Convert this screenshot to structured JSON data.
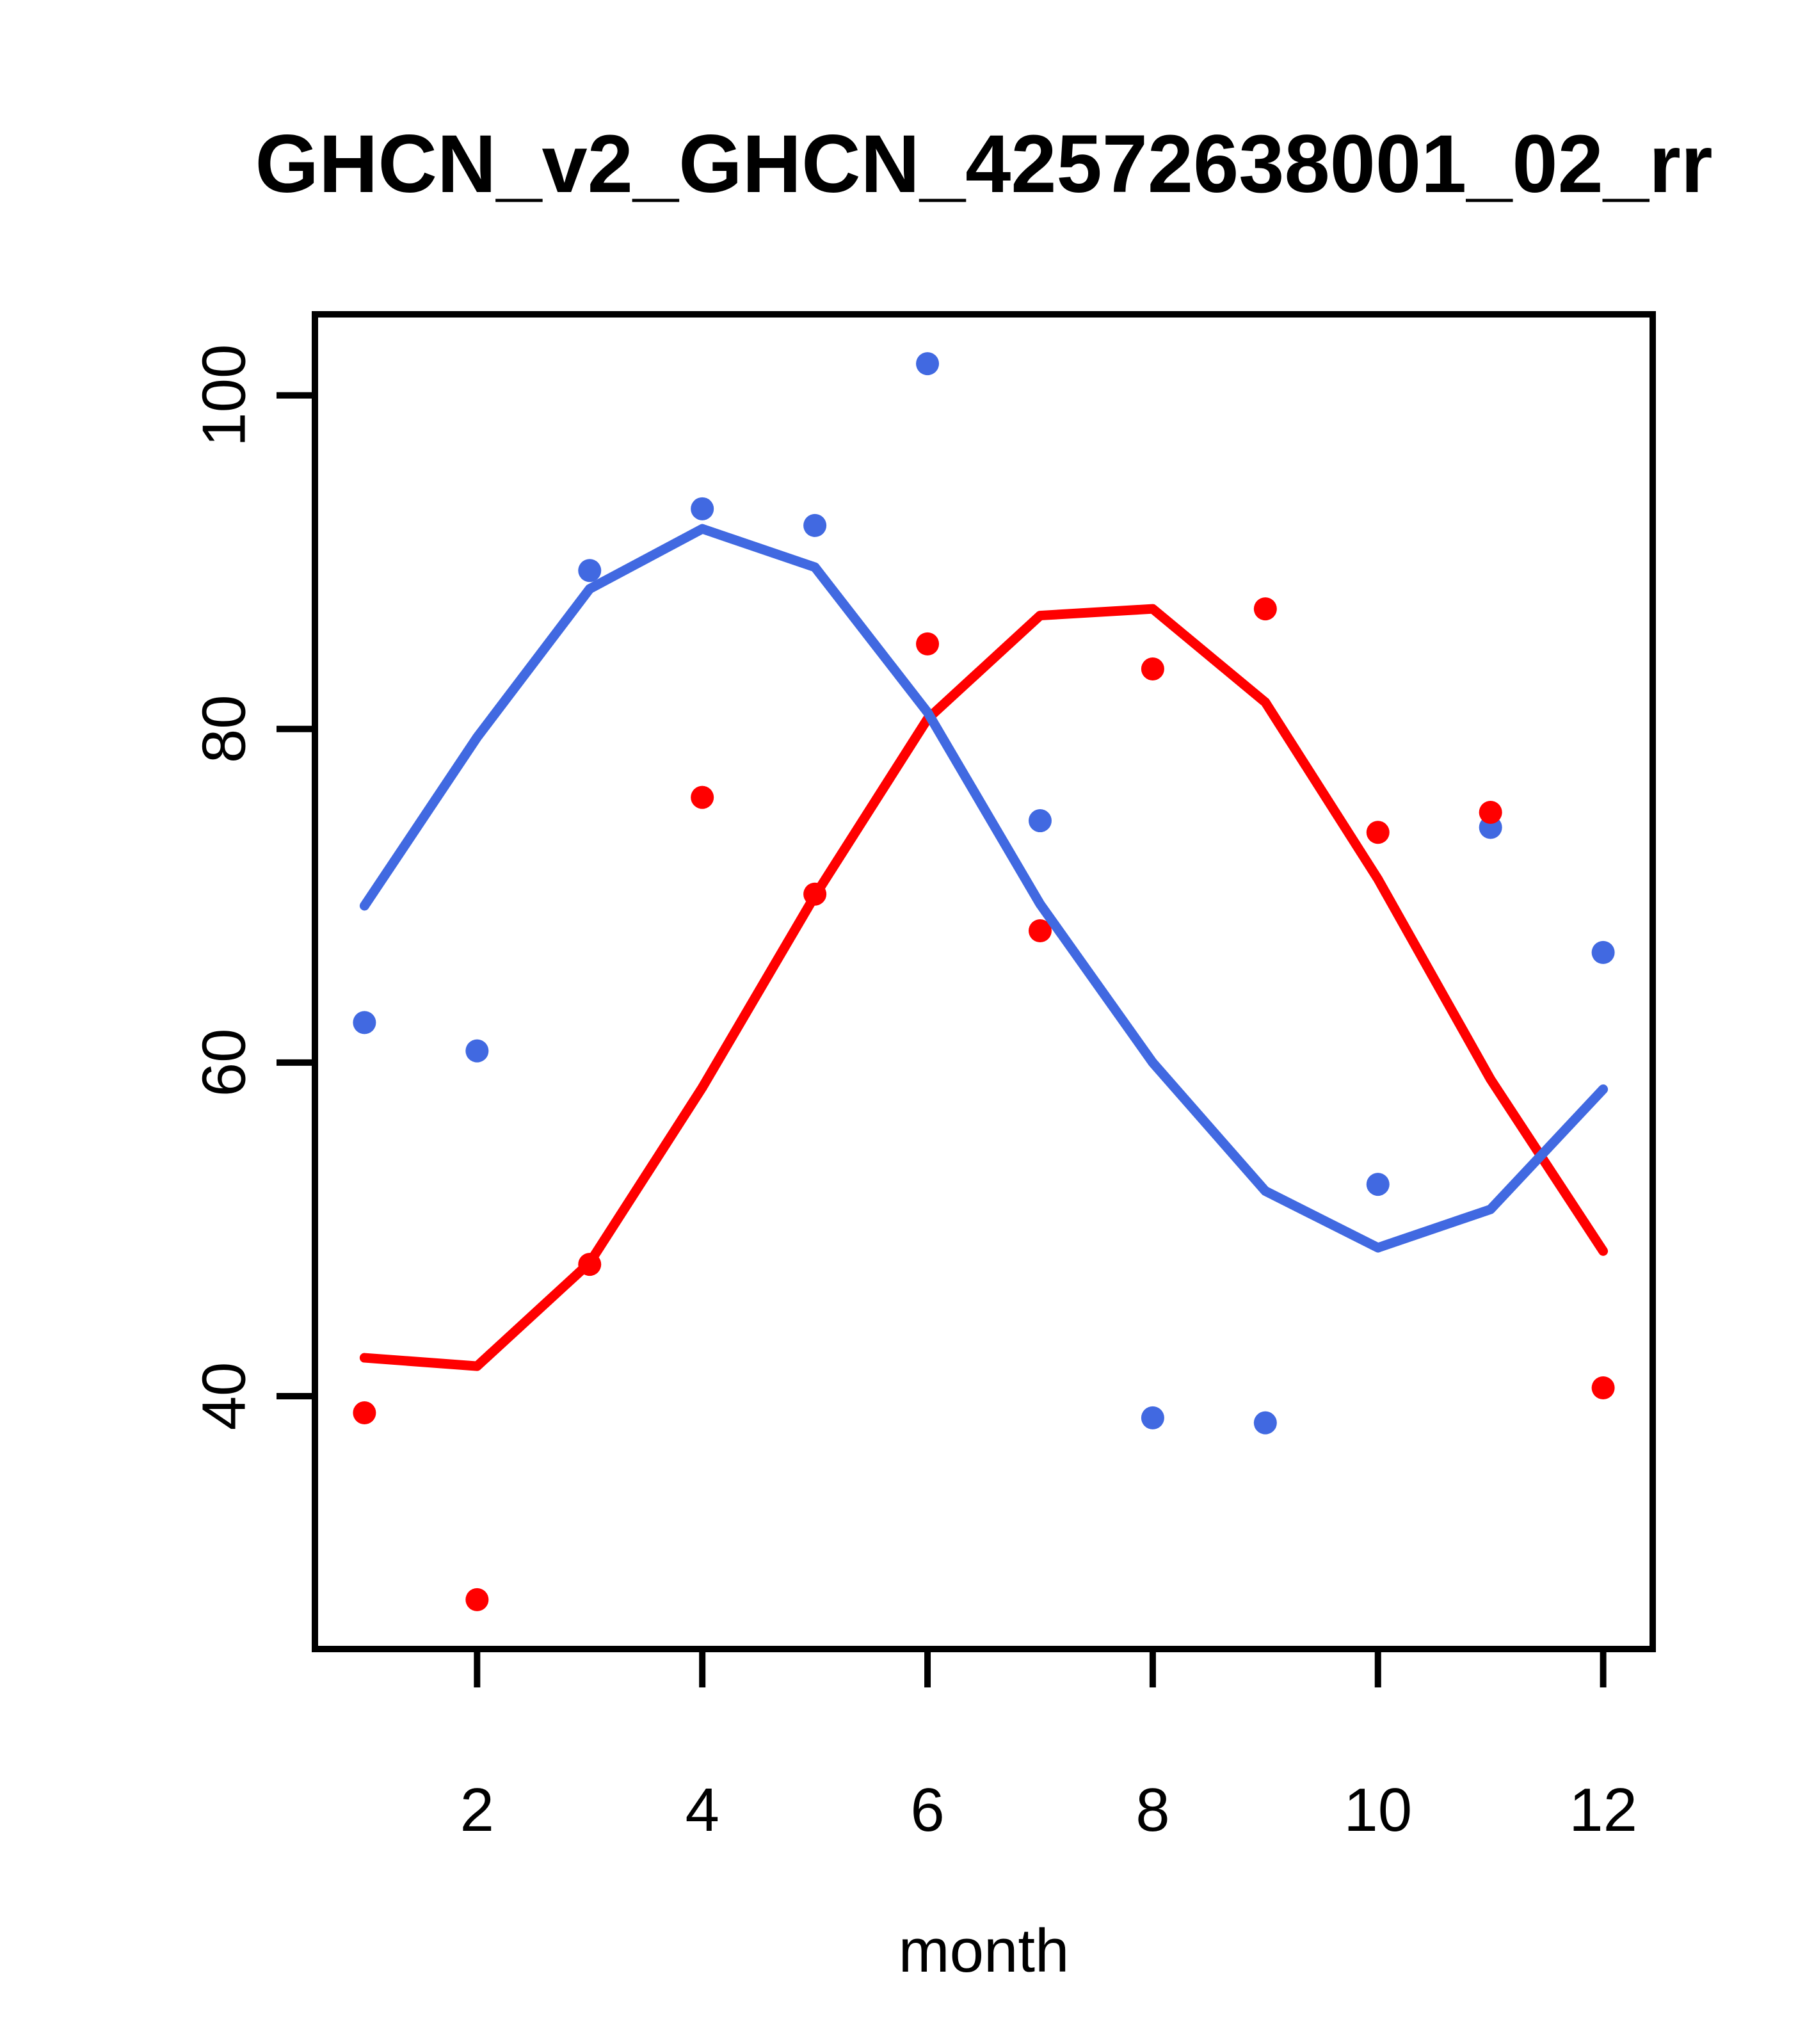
{
  "chart_data": {
    "type": "scatter",
    "title": "GHCN_v2_GHCN_42572638001_02_rr",
    "xlabel": "month",
    "ylabel": "",
    "grid": false,
    "legend": "none",
    "x_ticks": [
      2,
      4,
      6,
      8,
      10,
      12
    ],
    "y_ticks": [
      40,
      60,
      80,
      100
    ],
    "xlim": [
      0.56,
      12.44
    ],
    "ylim": [
      24.84,
      104.86
    ],
    "months": [
      1,
      2,
      3,
      4,
      5,
      6,
      7,
      8,
      9,
      10,
      11,
      12
    ],
    "colors": {
      "blue": "#4169E1",
      "red": "#FF0000",
      "axis": "#000000"
    },
    "series": [
      {
        "name": "blue-points",
        "kind": "points",
        "color": "#4169E1",
        "values": [
          62.4,
          60.7,
          89.5,
          93.2,
          92.2,
          101.9,
          74.5,
          38.7,
          38.4,
          52.7,
          74.1,
          66.6
        ]
      },
      {
        "name": "red-points",
        "kind": "points",
        "color": "#FF0000",
        "values": [
          39.0,
          27.8,
          47.9,
          75.9,
          70.1,
          85.1,
          67.9,
          83.6,
          87.2,
          73.8,
          75.0,
          40.5
        ]
      },
      {
        "name": "blue-lowess-line",
        "kind": "line",
        "color": "#4169E1",
        "values": [
          69.4,
          79.5,
          88.4,
          92.0,
          89.7,
          81.0,
          69.5,
          60.0,
          52.3,
          48.9,
          51.2,
          58.4
        ]
      },
      {
        "name": "red-lowess-line",
        "kind": "line",
        "color": "#FF0000",
        "values": [
          42.3,
          41.8,
          48.0,
          58.5,
          70.0,
          80.6,
          86.8,
          87.2,
          81.6,
          71.0,
          59.0,
          48.7
        ]
      }
    ]
  },
  "layout_note": "R base graphics scatter plot with two lowess smooth curves"
}
